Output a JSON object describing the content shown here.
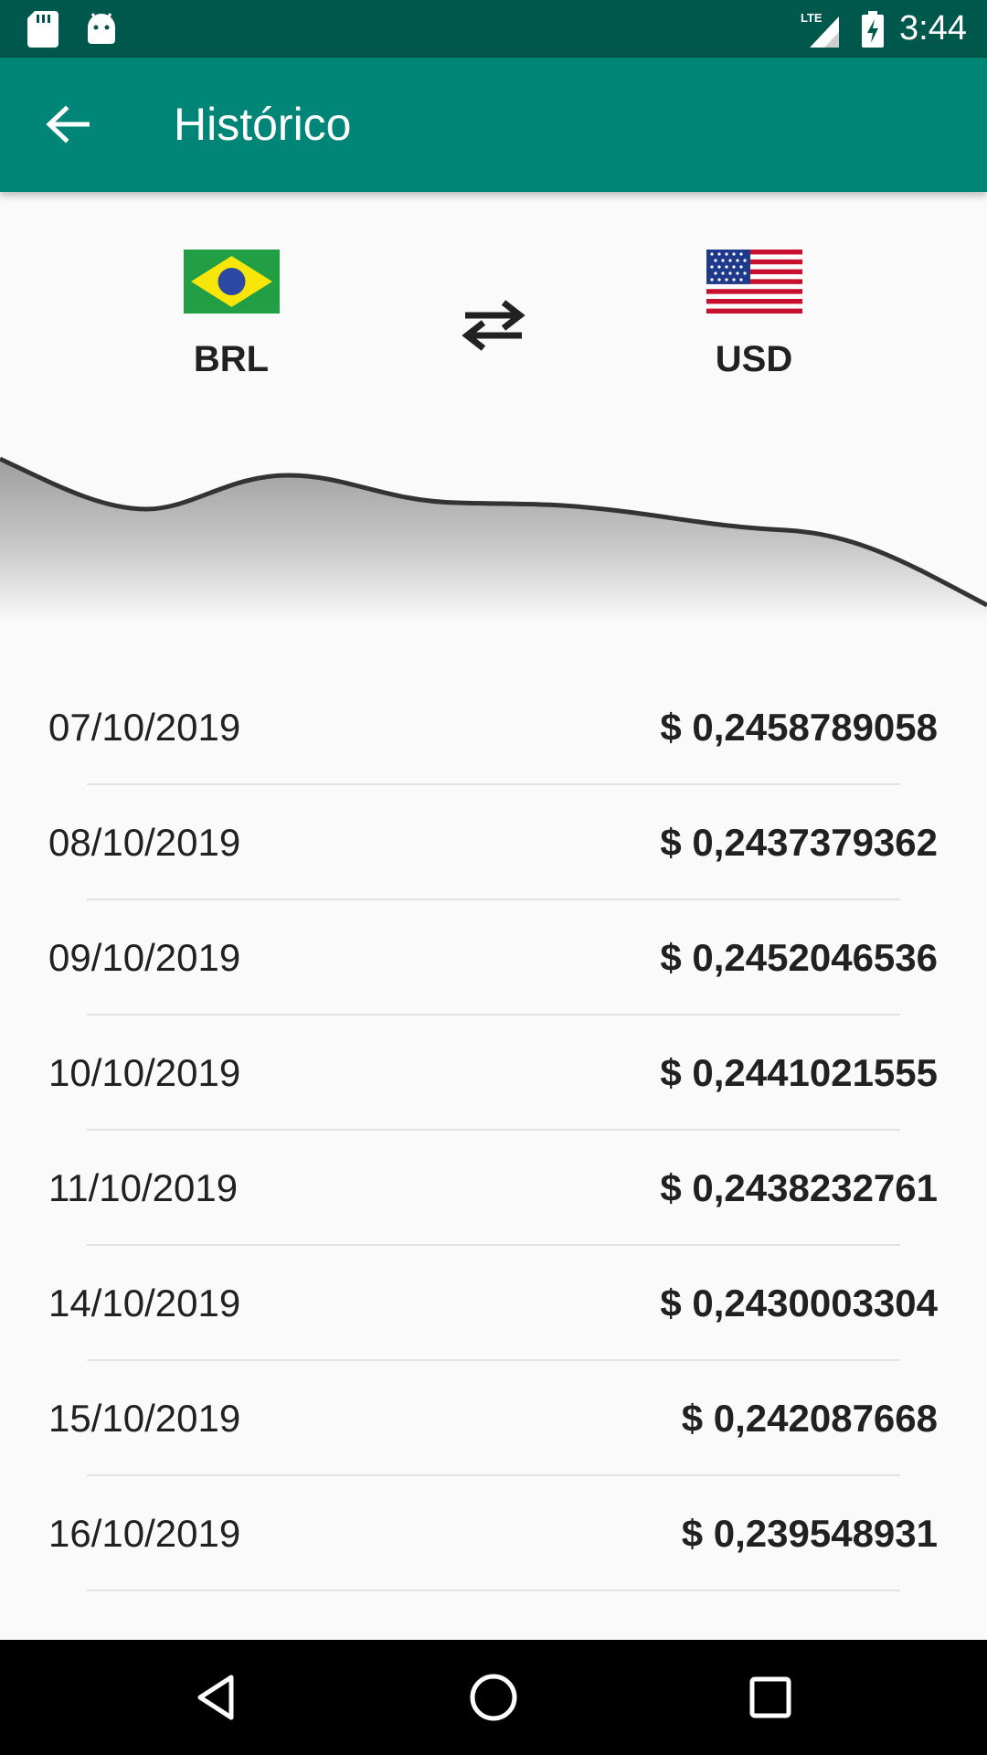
{
  "status_bar": {
    "time": "3:44",
    "network": "LTE",
    "icons": [
      "sd-card-icon",
      "android-icon",
      "lte-signal-icon",
      "battery-charging-icon"
    ]
  },
  "app_bar": {
    "title": "Histórico",
    "back_icon": "arrow-back-icon"
  },
  "pair": {
    "from_code": "BRL",
    "to_code": "USD",
    "swap_icon": "swap-horizontal-icon"
  },
  "history": [
    {
      "date": "07/10/2019",
      "value": "$ 0,2458789058"
    },
    {
      "date": "08/10/2019",
      "value": "$ 0,2437379362"
    },
    {
      "date": "09/10/2019",
      "value": "$ 0,2452046536"
    },
    {
      "date": "10/10/2019",
      "value": "$ 0,2441021555"
    },
    {
      "date": "11/10/2019",
      "value": "$ 0,2438232761"
    },
    {
      "date": "14/10/2019",
      "value": "$ 0,2430003304"
    },
    {
      "date": "15/10/2019",
      "value": "$ 0,242087668"
    },
    {
      "date": "16/10/2019",
      "value": "$ 0,239548931"
    }
  ],
  "colors": {
    "status_bar": "#00574b",
    "app_bar": "#008577",
    "background": "#fafafa",
    "graph_line": "#333333"
  },
  "nav_bar": {
    "icons": [
      "nav-back-icon",
      "nav-home-icon",
      "nav-recents-icon"
    ]
  }
}
